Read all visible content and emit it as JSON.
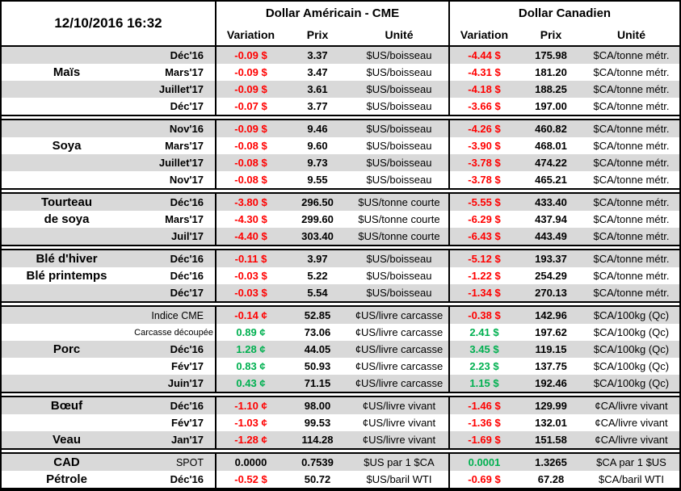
{
  "header": {
    "timestamp": "12/10/2016 16:32",
    "usd_title": "Dollar Américain - CME",
    "cad_title": "Dollar Canadien",
    "col_variation": "Variation",
    "col_prix": "Prix",
    "col_unite": "Unité"
  },
  "colors": {
    "negative": "#FF0000",
    "positive": "#00B050",
    "stripe": "#D9D9D9"
  },
  "sections": [
    {
      "name": "mais",
      "rows": [
        {
          "label": "",
          "month": "Déc'16",
          "us_var": "-0.09 $",
          "us_sign": "neg",
          "us_prix": "3.37",
          "us_unit": "$US/boisseau",
          "ca_var": "-4.44 $",
          "ca_sign": "neg",
          "ca_prix": "175.98",
          "ca_unit": "$CA/tonne métr."
        },
        {
          "label": "Maïs",
          "month": "Mars'17",
          "us_var": "-0.09 $",
          "us_sign": "neg",
          "us_prix": "3.47",
          "us_unit": "$US/boisseau",
          "ca_var": "-4.31 $",
          "ca_sign": "neg",
          "ca_prix": "181.20",
          "ca_unit": "$CA/tonne métr."
        },
        {
          "label": "",
          "month": "Juillet'17",
          "us_var": "-0.09 $",
          "us_sign": "neg",
          "us_prix": "3.61",
          "us_unit": "$US/boisseau",
          "ca_var": "-4.18 $",
          "ca_sign": "neg",
          "ca_prix": "188.25",
          "ca_unit": "$CA/tonne métr."
        },
        {
          "label": "",
          "month": "Déc'17",
          "us_var": "-0.07 $",
          "us_sign": "neg",
          "us_prix": "3.77",
          "us_unit": "$US/boisseau",
          "ca_var": "-3.66 $",
          "ca_sign": "neg",
          "ca_prix": "197.00",
          "ca_unit": "$CA/tonne métr."
        }
      ]
    },
    {
      "name": "soya",
      "rows": [
        {
          "label": "",
          "month": "Nov'16",
          "us_var": "-0.09 $",
          "us_sign": "neg",
          "us_prix": "9.46",
          "us_unit": "$US/boisseau",
          "ca_var": "-4.26 $",
          "ca_sign": "neg",
          "ca_prix": "460.82",
          "ca_unit": "$CA/tonne métr."
        },
        {
          "label": "Soya",
          "month": "Mars'17",
          "us_var": "-0.08 $",
          "us_sign": "neg",
          "us_prix": "9.60",
          "us_unit": "$US/boisseau",
          "ca_var": "-3.90 $",
          "ca_sign": "neg",
          "ca_prix": "468.01",
          "ca_unit": "$CA/tonne métr."
        },
        {
          "label": "",
          "month": "Juillet'17",
          "us_var": "-0.08 $",
          "us_sign": "neg",
          "us_prix": "9.73",
          "us_unit": "$US/boisseau",
          "ca_var": "-3.78 $",
          "ca_sign": "neg",
          "ca_prix": "474.22",
          "ca_unit": "$CA/tonne métr."
        },
        {
          "label": "",
          "month": "Nov'17",
          "us_var": "-0.08 $",
          "us_sign": "neg",
          "us_prix": "9.55",
          "us_unit": "$US/boisseau",
          "ca_var": "-3.78 $",
          "ca_sign": "neg",
          "ca_prix": "465.21",
          "ca_unit": "$CA/tonne métr."
        }
      ]
    },
    {
      "name": "tourteau-de-soya",
      "rows": [
        {
          "label": "Tourteau",
          "month": "Déc'16",
          "us_var": "-3.80 $",
          "us_sign": "neg",
          "us_prix": "296.50",
          "us_unit": "$US/tonne courte",
          "ca_var": "-5.55 $",
          "ca_sign": "neg",
          "ca_prix": "433.40",
          "ca_unit": "$CA/tonne métr."
        },
        {
          "label": "de soya",
          "month": "Mars'17",
          "us_var": "-4.30 $",
          "us_sign": "neg",
          "us_prix": "299.60",
          "us_unit": "$US/tonne courte",
          "ca_var": "-6.29 $",
          "ca_sign": "neg",
          "ca_prix": "437.94",
          "ca_unit": "$CA/tonne métr."
        },
        {
          "label": "",
          "month": "Juil'17",
          "us_var": "-4.40 $",
          "us_sign": "neg",
          "us_prix": "303.40",
          "us_unit": "$US/tonne courte",
          "ca_var": "-6.43 $",
          "ca_sign": "neg",
          "ca_prix": "443.49",
          "ca_unit": "$CA/tonne métr."
        }
      ]
    },
    {
      "name": "ble",
      "rows": [
        {
          "label": "Blé d'hiver",
          "month": "Déc'16",
          "us_var": "-0.11 $",
          "us_sign": "neg",
          "us_prix": "3.97",
          "us_unit": "$US/boisseau",
          "ca_var": "-5.12 $",
          "ca_sign": "neg",
          "ca_prix": "193.37",
          "ca_unit": "$CA/tonne métr."
        },
        {
          "label": "Blé printemps",
          "month": "Déc'16",
          "us_var": "-0.03 $",
          "us_sign": "neg",
          "us_prix": "5.22",
          "us_unit": "$US/boisseau",
          "ca_var": "-1.22 $",
          "ca_sign": "neg",
          "ca_prix": "254.29",
          "ca_unit": "$CA/tonne métr."
        },
        {
          "label": "",
          "month": "Déc'17",
          "us_var": "-0.03 $",
          "us_sign": "neg",
          "us_prix": "5.54",
          "us_unit": "$US/boisseau",
          "ca_var": "-1.34 $",
          "ca_sign": "neg",
          "ca_prix": "270.13",
          "ca_unit": "$CA/tonne métr."
        }
      ]
    },
    {
      "name": "porc",
      "rows": [
        {
          "label": "",
          "month": "Indice CME",
          "month_style": "regular",
          "us_var": "-0.14 ¢",
          "us_sign": "neg",
          "us_prix": "52.85",
          "us_unit": "¢US/livre carcasse",
          "ca_var": "-0.38 $",
          "ca_sign": "neg",
          "ca_prix": "142.96",
          "ca_unit": "$CA/100kg (Qc)"
        },
        {
          "label": "",
          "month": "Carcasse découpée",
          "month_style": "small",
          "us_var": "0.89 ¢",
          "us_sign": "pos",
          "us_prix": "73.06",
          "us_unit": "¢US/livre carcasse",
          "ca_var": "2.41 $",
          "ca_sign": "pos",
          "ca_prix": "197.62",
          "ca_unit": "$CA/100kg (Qc)"
        },
        {
          "label": "Porc",
          "month": "Déc'16",
          "us_var": "1.28 ¢",
          "us_sign": "pos",
          "us_prix": "44.05",
          "us_unit": "¢US/livre carcasse",
          "ca_var": "3.45 $",
          "ca_sign": "pos",
          "ca_prix": "119.15",
          "ca_unit": "$CA/100kg (Qc)"
        },
        {
          "label": "",
          "month": "Fév'17",
          "us_var": "0.83 ¢",
          "us_sign": "pos",
          "us_prix": "50.93",
          "us_unit": "¢US/livre carcasse",
          "ca_var": "2.23 $",
          "ca_sign": "pos",
          "ca_prix": "137.75",
          "ca_unit": "$CA/100kg (Qc)"
        },
        {
          "label": "",
          "month": "Juin'17",
          "us_var": "0.43 ¢",
          "us_sign": "pos",
          "us_prix": "71.15",
          "us_unit": "¢US/livre carcasse",
          "ca_var": "1.15 $",
          "ca_sign": "pos",
          "ca_prix": "192.46",
          "ca_unit": "$CA/100kg (Qc)"
        }
      ]
    },
    {
      "name": "boeuf-veau",
      "rows": [
        {
          "label": "Bœuf",
          "month": "Déc'16",
          "us_var": "-1.10 ¢",
          "us_sign": "neg",
          "us_prix": "98.00",
          "us_unit": "¢US/livre vivant",
          "ca_var": "-1.46 $",
          "ca_sign": "neg",
          "ca_prix": "129.99",
          "ca_unit": "¢CA/livre vivant"
        },
        {
          "label": "",
          "month": "Fév'17",
          "us_var": "-1.03 ¢",
          "us_sign": "neg",
          "us_prix": "99.53",
          "us_unit": "¢US/livre vivant",
          "ca_var": "-1.36 $",
          "ca_sign": "neg",
          "ca_prix": "132.01",
          "ca_unit": "¢CA/livre vivant"
        },
        {
          "label": "Veau",
          "month": "Jan'17",
          "us_var": "-1.28 ¢",
          "us_sign": "neg",
          "us_prix": "114.28",
          "us_unit": "¢US/livre vivant",
          "ca_var": "-1.69 $",
          "ca_sign": "neg",
          "ca_prix": "151.58",
          "ca_unit": "¢CA/livre vivant"
        }
      ]
    },
    {
      "name": "cad-petrole",
      "rows": [
        {
          "label": "CAD",
          "month": "SPOT",
          "month_style": "regular",
          "us_var": "0.0000",
          "us_sign": "zero",
          "us_prix": "0.7539",
          "us_unit": "$US par 1 $CA",
          "ca_var": "0.0001",
          "ca_sign": "pos",
          "ca_prix": "1.3265",
          "ca_unit": "$CA par 1 $US"
        },
        {
          "label": "Pétrole",
          "month": "Déc'16",
          "us_var": "-0.52 $",
          "us_sign": "neg",
          "us_prix": "50.72",
          "us_unit": "$US/baril WTI",
          "ca_var": "-0.69 $",
          "ca_sign": "neg",
          "ca_prix": "67.28",
          "ca_unit": "$CA/baril WTI"
        }
      ]
    }
  ]
}
